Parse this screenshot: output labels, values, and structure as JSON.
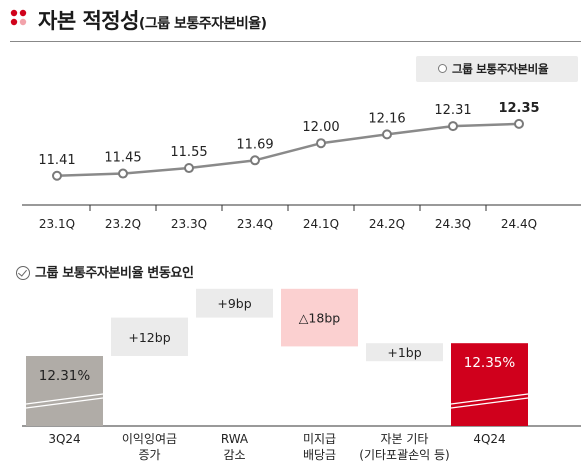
{
  "header": {
    "title": "자본 적정성",
    "subtitle": "(그룹 보통주자본비율)",
    "logo_icon": "red-dots-logo-icon"
  },
  "legend": {
    "label": "그룹 보통주자본비율"
  },
  "section2": {
    "title": "그룹 보통주자본비율 변동요인"
  },
  "colors": {
    "line": "#8a8a8a",
    "marker": "#7a7a7a",
    "gray_bar": "#b0aca7",
    "red_bar": "#d0001c",
    "change_gray": "#ebebeb",
    "change_pink": "#fbd0d0"
  },
  "chart_data": [
    {
      "type": "line",
      "categories": [
        "23.1Q",
        "23.2Q",
        "23.3Q",
        "23.4Q",
        "24.1Q",
        "24.2Q",
        "24.3Q",
        "24.4Q"
      ],
      "series": [
        {
          "name": "그룹 보통주자본비율",
          "values": [
            11.41,
            11.45,
            11.55,
            11.69,
            12.0,
            12.16,
            12.31,
            12.35
          ]
        }
      ],
      "value_labels": [
        "11.41",
        "11.45",
        "11.55",
        "11.69",
        "12.00",
        "12.16",
        "12.31",
        "12.35"
      ],
      "ylim": [
        10.5,
        13.0
      ],
      "legend": "top-right",
      "grid": false
    },
    {
      "type": "bar",
      "subtype": "waterfall",
      "steps": [
        {
          "label": "3Q24",
          "value": 12.31,
          "kind": "total",
          "text": "12.31%"
        },
        {
          "label": "이익잉여금\n증가",
          "value": 12,
          "unit": "bp",
          "kind": "increase",
          "text": "+12bp"
        },
        {
          "label": "RWA\n감소",
          "value": 9,
          "unit": "bp",
          "kind": "increase",
          "text": "+9bp"
        },
        {
          "label": "미지급\n배당금",
          "value": -18,
          "unit": "bp",
          "kind": "decrease",
          "text": "△18bp"
        },
        {
          "label": "자본 기타\n(기타포괄손익 등)",
          "value": 1,
          "unit": "bp",
          "kind": "increase",
          "text": "+1bp"
        },
        {
          "label": "4Q24",
          "value": 12.35,
          "kind": "total",
          "text": "12.35%"
        }
      ],
      "grid": false
    }
  ]
}
